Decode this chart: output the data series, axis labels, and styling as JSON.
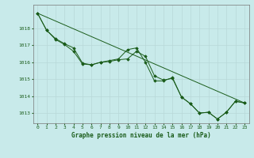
{
  "xlabel": "Graphe pression niveau de la mer (hPa)",
  "bg_color": "#c8eaea",
  "grid_color": "#aadddd",
  "line_color": "#1a5c1a",
  "marker_color": "#1a5c1a",
  "xlim": [
    -0.5,
    23.5
  ],
  "ylim": [
    1012.4,
    1019.4
  ],
  "yticks": [
    1013,
    1014,
    1015,
    1016,
    1017,
    1018
  ],
  "xticks": [
    0,
    1,
    2,
    3,
    4,
    5,
    6,
    7,
    8,
    9,
    10,
    11,
    12,
    13,
    14,
    15,
    16,
    17,
    18,
    19,
    20,
    21,
    22,
    23
  ],
  "series1_x": [
    0,
    1,
    2,
    3,
    4,
    5,
    6,
    7,
    8,
    9,
    10,
    11,
    12,
    13,
    14,
    15,
    16,
    17,
    18,
    19,
    20,
    21,
    22,
    23
  ],
  "series1_y": [
    1018.9,
    1017.9,
    1017.4,
    1017.1,
    1016.85,
    1015.95,
    1015.85,
    1016.0,
    1016.1,
    1016.2,
    1016.75,
    1016.85,
    1016.0,
    1014.9,
    1014.9,
    1015.1,
    1013.95,
    1013.55,
    1013.0,
    1013.05,
    1012.65,
    1013.05,
    1013.7,
    1013.6
  ],
  "series2_x": [
    0,
    1,
    2,
    3,
    4,
    5,
    6,
    7,
    8,
    9,
    10,
    11,
    12,
    13,
    14,
    15,
    16,
    17,
    18,
    19,
    20,
    21,
    22,
    23
  ],
  "series2_y": [
    1018.9,
    1017.9,
    1017.35,
    1017.05,
    1016.65,
    1015.9,
    1015.85,
    1016.0,
    1016.05,
    1016.15,
    1016.2,
    1016.65,
    1016.35,
    1015.2,
    1014.95,
    1015.05,
    1013.95,
    1013.55,
    1013.0,
    1013.05,
    1012.65,
    1013.05,
    1013.7,
    1013.6
  ],
  "trend_x": [
    0,
    23
  ],
  "trend_y": [
    1018.9,
    1013.6
  ]
}
